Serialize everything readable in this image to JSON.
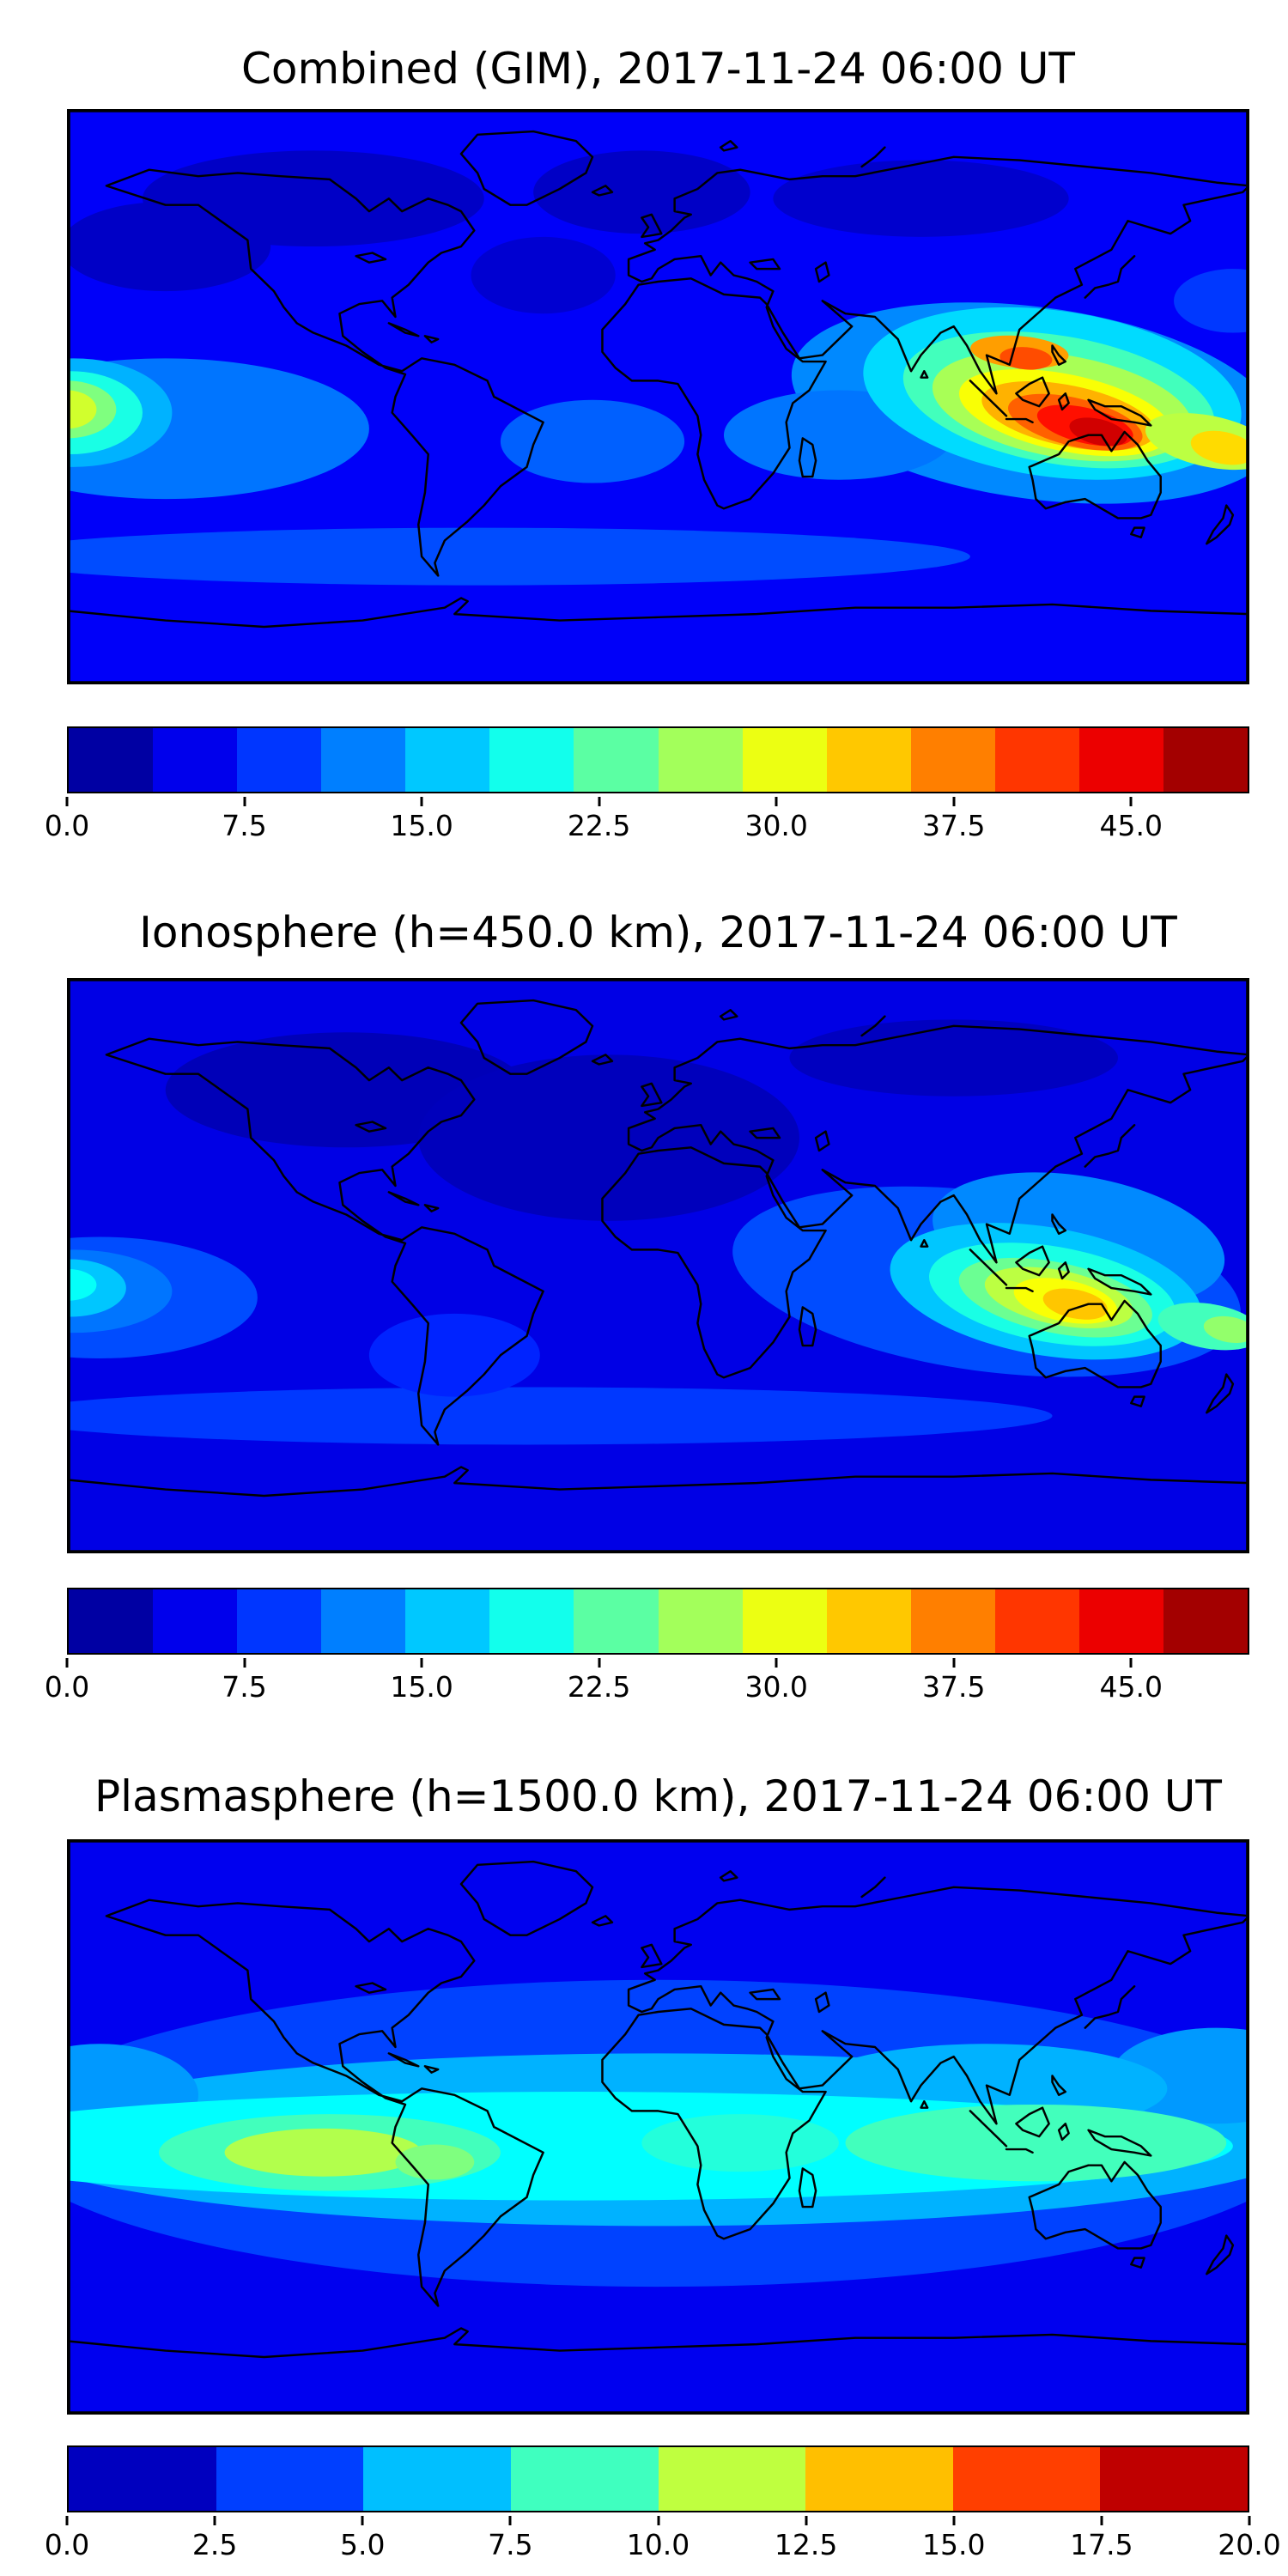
{
  "page": {
    "background": "#ffffff"
  },
  "colors": {
    "colormap": "jet",
    "coastline": "#000000",
    "frame": "#000000",
    "jet_stops": [
      "#000080",
      "#0000ff",
      "#00b0ff",
      "#00ffff",
      "#40ffb0",
      "#b0ff40",
      "#ffff00",
      "#ffa000",
      "#ff3000",
      "#cc0000",
      "#800000"
    ]
  },
  "chart_data": [
    {
      "type": "heatmap",
      "subtype": "filled_contour_world_map",
      "title": "Combined (GIM), 2017-11-24 06:00 UT",
      "projection": "equirectangular",
      "xlim": [
        -180,
        180
      ],
      "ylim": [
        -90,
        90
      ],
      "colorbar": {
        "orientation": "horizontal",
        "vmin": 0,
        "vmax": 50,
        "n_bands": 14,
        "ticks": [
          0,
          7.5,
          15,
          22.5,
          30,
          37.5,
          45
        ],
        "tick_labels": [
          "0.0",
          "7.5",
          "15.0",
          "22.5",
          "30.0",
          "37.5",
          "45.0"
        ]
      },
      "field": {
        "description": "Total electron content; broad blue background, dark patches at high northern latitudes, cyan equatorial band, yellow enhancement at the left (Pacific) edge, strong tilted hotspot peaking ~47 over Southeast Asia / northern Australia",
        "background_value": 6,
        "regions": [
          {
            "value": 3.5,
            "lon": -105,
            "lat": 62,
            "rx": 52,
            "ry": 15,
            "rot": 0
          },
          {
            "value": 3.5,
            "lon": -5,
            "lat": 64,
            "rx": 33,
            "ry": 13,
            "rot": 0
          },
          {
            "value": 3.8,
            "lon": 80,
            "lat": 62,
            "rx": 45,
            "ry": 12,
            "rot": 0
          },
          {
            "value": 3.5,
            "lon": -150,
            "lat": 47,
            "rx": 32,
            "ry": 14,
            "rot": 0
          },
          {
            "value": 4,
            "lon": -35,
            "lat": 38,
            "rx": 22,
            "ry": 12,
            "rot": 0
          },
          {
            "value": 10,
            "lon": -55,
            "lat": -50,
            "rx": 150,
            "ry": 9,
            "rot": 0
          },
          {
            "value": 9,
            "lon": 175,
            "lat": 30,
            "rx": 18,
            "ry": 10,
            "rot": 0
          },
          {
            "value": 12,
            "lon": -150,
            "lat": -10,
            "rx": 62,
            "ry": 22,
            "rot": 0
          },
          {
            "value": 13,
            "lon": 115,
            "lat": -2,
            "rx": 75,
            "ry": 30,
            "rot": 8
          },
          {
            "value": 11,
            "lon": -20,
            "lat": -14,
            "rx": 28,
            "ry": 13,
            "rot": 0
          },
          {
            "value": 12,
            "lon": 55,
            "lat": -12,
            "rx": 35,
            "ry": 14,
            "rot": 0
          },
          {
            "value": 15,
            "lon": -178,
            "lat": -5,
            "rx": 30,
            "ry": 17,
            "rot": 0
          },
          {
            "value": 20,
            "lon": -179,
            "lat": -5,
            "rx": 22,
            "ry": 13,
            "rot": 0
          },
          {
            "value": 25,
            "lon": -180,
            "lat": -4,
            "rx": 15,
            "ry": 9,
            "rot": 0
          },
          {
            "value": 29,
            "lon": -180,
            "lat": -4,
            "rx": 9,
            "ry": 6,
            "rot": 0
          },
          {
            "value": 17,
            "lon": 120,
            "lat": 1,
            "rx": 58,
            "ry": 26,
            "rot": 8
          },
          {
            "value": 22,
            "lon": 122,
            "lat": -1,
            "rx": 48,
            "ry": 20,
            "rot": 10
          },
          {
            "value": 27,
            "lon": 123,
            "lat": -3,
            "rx": 40,
            "ry": 16,
            "rot": 10
          },
          {
            "value": 31,
            "lon": 124,
            "lat": -5,
            "rx": 33,
            "ry": 12,
            "rot": 12
          },
          {
            "value": 35,
            "lon": 125,
            "lat": -6,
            "rx": 27,
            "ry": 9.5,
            "rot": 12
          },
          {
            "value": 39,
            "lon": 127,
            "lat": -8,
            "rx": 21,
            "ry": 7.5,
            "rot": 14
          },
          {
            "value": 43,
            "lon": 130,
            "lat": -9,
            "rx": 15,
            "ry": 5.5,
            "rot": 14
          },
          {
            "value": 46,
            "lon": 134,
            "lat": -11,
            "rx": 9,
            "ry": 4,
            "rot": 14
          },
          {
            "value": 36,
            "lon": 110,
            "lat": 14,
            "rx": 15,
            "ry": 5,
            "rot": 5
          },
          {
            "value": 40,
            "lon": 112,
            "lat": 12,
            "rx": 8,
            "ry": 3.5,
            "rot": 5
          },
          {
            "value": 28,
            "lon": 168,
            "lat": -14,
            "rx": 20,
            "ry": 8,
            "rot": 12
          },
          {
            "value": 33,
            "lon": 172,
            "lat": -16,
            "rx": 10,
            "ry": 5,
            "rot": 12
          }
        ]
      }
    },
    {
      "type": "heatmap",
      "subtype": "filled_contour_world_map",
      "title": "Ionosphere  (h=450.0 km), 2017-11-24 06:00 UT",
      "projection": "equirectangular",
      "xlim": [
        -180,
        180
      ],
      "ylim": [
        -90,
        90
      ],
      "colorbar": {
        "orientation": "horizontal",
        "vmin": 0,
        "vmax": 50,
        "n_bands": 14,
        "ticks": [
          0,
          7.5,
          15,
          22.5,
          30,
          37.5,
          45
        ],
        "tick_labels": [
          "0.0",
          "7.5",
          "15.0",
          "22.5",
          "30.0",
          "37.5",
          "45.0"
        ]
      },
      "field": {
        "description": "Ionospheric TEC at 450 km; darker overall than combined map, large dark navy region over North Atlantic / Europe / North Africa, moderate green blob at left edge, yellow-orange hotspot ~34 over Indonesia / northern Australia",
        "background_value": 5,
        "regions": [
          {
            "value": 2.8,
            "lon": -95,
            "lat": 55,
            "rx": 55,
            "ry": 18,
            "rot": 0
          },
          {
            "value": 3,
            "lon": -15,
            "lat": 40,
            "rx": 58,
            "ry": 26,
            "rot": 0
          },
          {
            "value": 3.2,
            "lon": 90,
            "lat": 65,
            "rx": 50,
            "ry": 12,
            "rot": 0
          },
          {
            "value": 9,
            "lon": -40,
            "lat": -47,
            "rx": 160,
            "ry": 9,
            "rot": 0
          },
          {
            "value": 10,
            "lon": -170,
            "lat": -10,
            "rx": 48,
            "ry": 19,
            "rot": 0
          },
          {
            "value": 10,
            "lon": 100,
            "lat": -5,
            "rx": 78,
            "ry": 28,
            "rot": 8
          },
          {
            "value": 8,
            "lon": -62,
            "lat": -28,
            "rx": 26,
            "ry": 13,
            "rot": 0
          },
          {
            "value": 13,
            "lon": 128,
            "lat": 8,
            "rx": 45,
            "ry": 20,
            "rot": 10
          },
          {
            "value": 12,
            "lon": -178,
            "lat": -8,
            "rx": 30,
            "ry": 13,
            "rot": 0
          },
          {
            "value": 16,
            "lon": -179,
            "lat": -7,
            "rx": 17,
            "ry": 9,
            "rot": 0
          },
          {
            "value": 19,
            "lon": -180,
            "lat": -6,
            "rx": 9,
            "ry": 5,
            "rot": 0
          },
          {
            "value": 16,
            "lon": 118,
            "lat": -8,
            "rx": 48,
            "ry": 20,
            "rot": 10
          },
          {
            "value": 20,
            "lon": 120,
            "lat": -9,
            "rx": 38,
            "ry": 15,
            "rot": 10
          },
          {
            "value": 24,
            "lon": 121,
            "lat": -10,
            "rx": 30,
            "ry": 11,
            "rot": 12
          },
          {
            "value": 28,
            "lon": 122,
            "lat": -10,
            "rx": 23,
            "ry": 8.5,
            "rot": 12
          },
          {
            "value": 31,
            "lon": 124,
            "lat": -11,
            "rx": 16,
            "ry": 6.5,
            "rot": 12
          },
          {
            "value": 34,
            "lon": 127,
            "lat": -12,
            "rx": 10,
            "ry": 4.5,
            "rot": 12
          },
          {
            "value": 22,
            "lon": 168,
            "lat": -19,
            "rx": 16,
            "ry": 7,
            "rot": 10
          },
          {
            "value": 26,
            "lon": 174,
            "lat": -20,
            "rx": 8,
            "ry": 4,
            "rot": 10
          }
        ]
      }
    },
    {
      "type": "heatmap",
      "subtype": "filled_contour_world_map",
      "title": "Plasmasphere (h=1500.0 km), 2017-11-24 06:00 UT",
      "projection": "equirectangular",
      "xlim": [
        -180,
        180
      ],
      "ylim": [
        -90,
        90
      ],
      "colorbar": {
        "orientation": "horizontal",
        "vmin": 0,
        "vmax": 20,
        "n_bands": 8,
        "ticks": [
          0,
          2.5,
          5,
          7.5,
          10,
          12.5,
          15,
          17.5,
          20
        ],
        "tick_labels": [
          "0.0",
          "2.5",
          "5.0",
          "7.5",
          "10.0",
          "12.5",
          "15.0",
          "17.5",
          "20.0"
        ]
      },
      "field": {
        "description": "Plasmaspheric TEC at 1500 km; smooth zonal bands: dark blue polar bands, broad cyan low-latitude band, green equatorial band, yellow-green maximum ~11 over the eastern Pacific / South America",
        "background_value": 2.2,
        "regions": [
          {
            "value": 3.8,
            "lon": 0,
            "lat": -2,
            "rx": 200,
            "ry": 48,
            "rot": 0
          },
          {
            "value": 6,
            "lon": 0,
            "lat": -4,
            "rx": 200,
            "ry": 27,
            "rot": 0
          },
          {
            "value": 5.5,
            "lon": 170,
            "lat": 16,
            "rx": 32,
            "ry": 15,
            "rot": 0
          },
          {
            "value": 5.5,
            "lon": -170,
            "lat": 10,
            "rx": 30,
            "ry": 16,
            "rot": 0
          },
          {
            "value": 6,
            "lon": 100,
            "lat": 12,
            "rx": 55,
            "ry": 14,
            "rot": 0
          },
          {
            "value": 7.5,
            "lon": -25,
            "lat": -6,
            "rx": 200,
            "ry": 17,
            "rot": 0
          },
          {
            "value": 8.8,
            "lon": -100,
            "lat": -8,
            "rx": 52,
            "ry": 12,
            "rot": 0
          },
          {
            "value": 8.8,
            "lon": 115,
            "lat": -5,
            "rx": 58,
            "ry": 12,
            "rot": 0
          },
          {
            "value": 8.2,
            "lon": 25,
            "lat": -5,
            "rx": 30,
            "ry": 9,
            "rot": 0
          },
          {
            "value": 11,
            "lon": -102,
            "lat": -8,
            "rx": 30,
            "ry": 7.5,
            "rot": 0
          },
          {
            "value": 10,
            "lon": -68,
            "lat": -11,
            "rx": 12,
            "ry": 5.5,
            "rot": 0
          }
        ]
      }
    }
  ]
}
